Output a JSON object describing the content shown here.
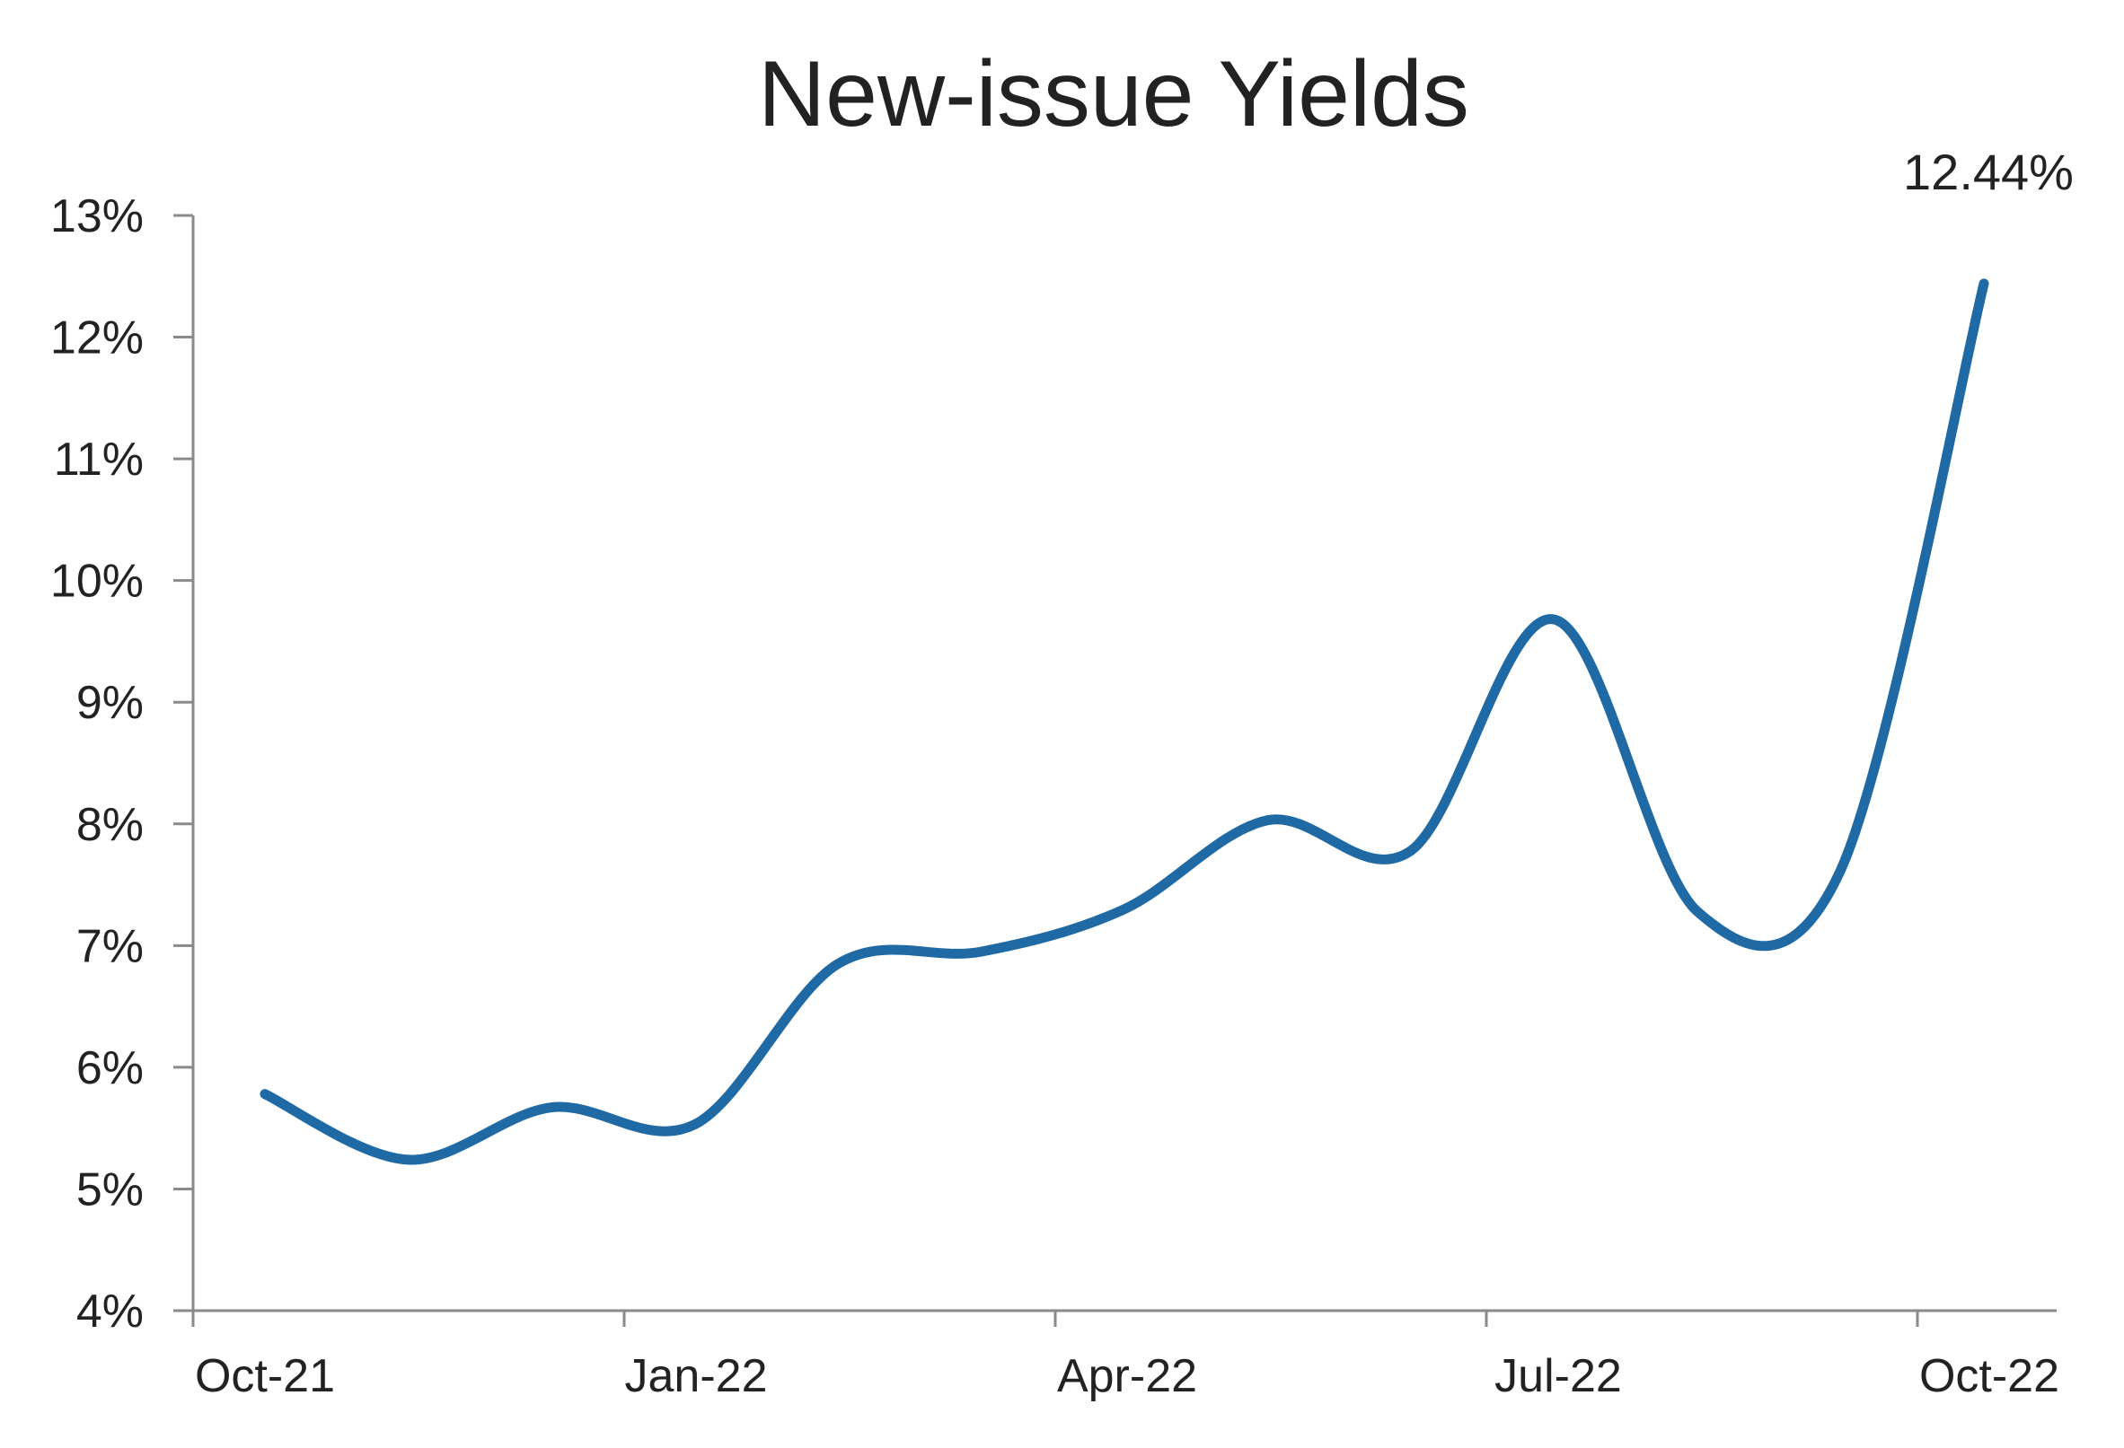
{
  "chart_data": {
    "type": "line",
    "title": "New-issue Yields",
    "xlabel": "",
    "ylabel": "",
    "x_tick_labels": [
      "Oct-21",
      "Jan-22",
      "Apr-22",
      "Jul-22",
      "Oct-22"
    ],
    "y_tick_labels": [
      "4%",
      "5%",
      "6%",
      "7%",
      "8%",
      "9%",
      "10%",
      "11%",
      "12%",
      "13%"
    ],
    "ylim": [
      4,
      13
    ],
    "y_unit": "%",
    "grid": false,
    "legend": "none",
    "x": [
      "Oct-21",
      "Nov-21",
      "Dec-21",
      "Jan-22",
      "Feb-22",
      "Mar-22",
      "Apr-22",
      "May-22",
      "Jun-22",
      "Jul-22",
      "Aug-22",
      "Sep-22",
      "Oct-22"
    ],
    "series": [
      {
        "color": "#1f6aa5",
        "values": [
          5.78,
          5.24,
          5.67,
          5.53,
          6.85,
          6.95,
          7.3,
          8.03,
          7.78,
          9.68,
          7.28,
          7.62,
          12.44
        ]
      }
    ],
    "annotations": [
      {
        "text": "12.44%",
        "x": "Oct-22",
        "y": 12.44
      }
    ]
  }
}
